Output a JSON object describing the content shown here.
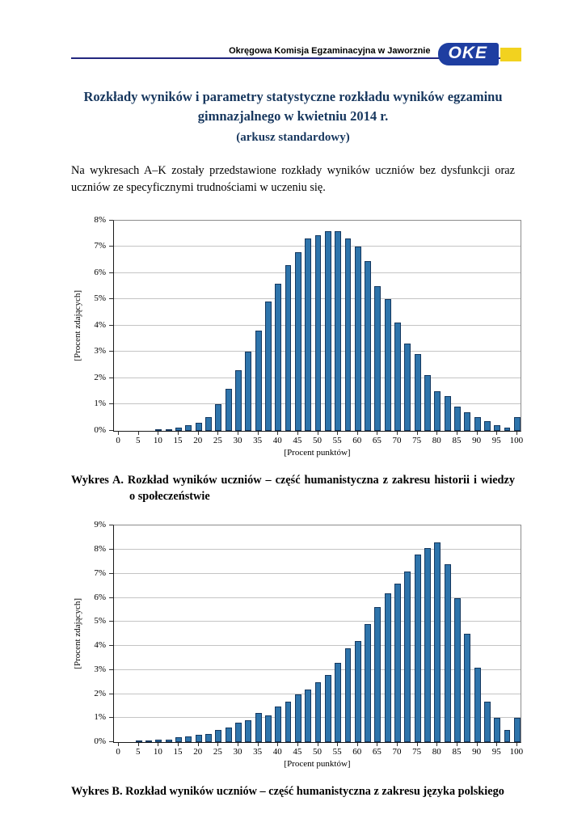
{
  "header": {
    "institution": "Okręgowa Komisja Egzaminacyjna w Jaworznie",
    "logo_text": "OKE"
  },
  "title": {
    "line1": "Rozkłady wyników i parametry statystyczne rozkładu wyników egzaminu",
    "line2": "gimnazjalnego w kwietniu 2014 r.",
    "subtitle": "(arkusz standardowy)"
  },
  "intro": "Na wykresach A–K zostały przedstawione rozkłady wyników uczniów bez dysfunkcji oraz uczniów ze specyficznymi trudnościami w uczeniu się.",
  "captions": {
    "a_line1": "Wykres A. Rozkład wyników uczniów – część humanistyczna z zakresu historii i wiedzy",
    "a_line2": "o społeczeństwie",
    "b": "Wykres B. Rozkład wyników uczniów – część humanistyczna z zakresu języka polskiego"
  },
  "colors": {
    "title_navy": "#17375e",
    "header_rule": "#23277e",
    "logo_blue": "#1e3ea1",
    "logo_yellow": "#f2d21f",
    "bar_blue": "#2e74ab",
    "bar_border": "#15385f"
  },
  "chart_data": [
    {
      "label": "A",
      "type": "bar",
      "title": "Rozkład wyników uczniów – część humanistyczna z zakresu historii i wiedzy o społeczeństwie",
      "xlabel": "[Procent punktów]",
      "ylabel": "[Procent zdających]",
      "ylim": [
        0,
        8
      ],
      "yticks": [
        "0%",
        "1%",
        "2%",
        "3%",
        "4%",
        "5%",
        "6%",
        "7%",
        "8%"
      ],
      "xticks": [
        0,
        5,
        10,
        15,
        20,
        25,
        30,
        35,
        40,
        45,
        50,
        55,
        60,
        65,
        70,
        75,
        80,
        85,
        90,
        95,
        100
      ],
      "x_step": 2.5,
      "grid": true,
      "legend": "none",
      "bar_color": "#2e74ab",
      "bar_border": "#15385f",
      "x": [
        0,
        2.5,
        5,
        7.5,
        10,
        12.5,
        15,
        17.5,
        20,
        22.5,
        25,
        27.5,
        30,
        32.5,
        35,
        37.5,
        40,
        42.5,
        45,
        47.5,
        50,
        52.5,
        55,
        57.5,
        60,
        62.5,
        65,
        67.5,
        70,
        72.5,
        75,
        77.5,
        80,
        82.5,
        85,
        87.5,
        90,
        92.5,
        95,
        97.5,
        100
      ],
      "values": [
        0,
        0,
        0,
        0,
        0.02,
        0.05,
        0.1,
        0.2,
        0.3,
        0.5,
        1.0,
        1.6,
        2.3,
        3.0,
        3.8,
        4.9,
        5.6,
        6.3,
        6.8,
        7.3,
        7.45,
        7.6,
        7.6,
        7.3,
        7.0,
        6.45,
        5.5,
        5.0,
        4.1,
        3.3,
        2.9,
        2.1,
        1.5,
        1.3,
        0.9,
        0.7,
        0.5,
        0.35,
        0.2,
        0.1,
        0.5
      ]
    },
    {
      "label": "B",
      "type": "bar",
      "title": "Rozkład wyników uczniów – część humanistyczna z zakresu języka polskiego",
      "xlabel": "[Procent punktów]",
      "ylabel": "[Procent zdających]",
      "ylim": [
        0,
        9
      ],
      "yticks": [
        "0%",
        "1%",
        "2%",
        "3%",
        "4%",
        "5%",
        "6%",
        "7%",
        "8%",
        "9%"
      ],
      "xticks": [
        0,
        5,
        10,
        15,
        20,
        25,
        30,
        35,
        40,
        45,
        50,
        55,
        60,
        65,
        70,
        75,
        80,
        85,
        90,
        95,
        100
      ],
      "x_step": 2.5,
      "grid": true,
      "legend": "none",
      "bar_color": "#2e74ab",
      "bar_border": "#15385f",
      "x": [
        0,
        2.5,
        5,
        7.5,
        10,
        12.5,
        15,
        17.5,
        20,
        22.5,
        25,
        27.5,
        30,
        32.5,
        35,
        37.5,
        40,
        42.5,
        45,
        47.5,
        50,
        52.5,
        55,
        57.5,
        60,
        62.5,
        65,
        67.5,
        70,
        72.5,
        75,
        77.5,
        80,
        82.5,
        85,
        87.5,
        90,
        92.5,
        95,
        97.5,
        100
      ],
      "values": [
        0,
        0,
        0.02,
        0.05,
        0.1,
        0.1,
        0.2,
        0.25,
        0.3,
        0.35,
        0.5,
        0.6,
        0.8,
        0.9,
        1.2,
        1.1,
        1.5,
        1.7,
        2.0,
        2.2,
        2.5,
        2.8,
        3.3,
        3.9,
        4.2,
        4.9,
        5.6,
        6.2,
        6.6,
        7.1,
        7.8,
        8.05,
        8.3,
        7.4,
        6.0,
        4.5,
        3.1,
        1.7,
        1.0,
        0.5,
        1.0
      ]
    }
  ]
}
